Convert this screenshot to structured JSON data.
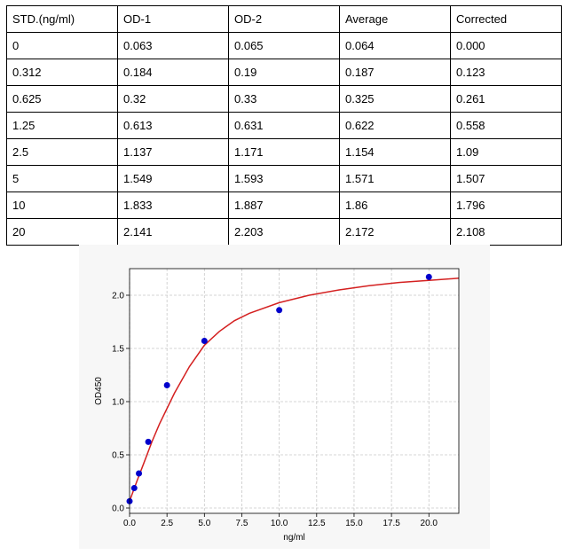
{
  "table": {
    "headers": [
      "STD.(ng/ml)",
      "OD-1",
      "OD-2",
      "Average",
      "Corrected"
    ],
    "rows": [
      [
        "0",
        "0.063",
        "0.065",
        "0.064",
        "0.000"
      ],
      [
        "0.312",
        "0.184",
        "0.19",
        "0.187",
        "0.123"
      ],
      [
        "0.625",
        "0.32",
        "0.33",
        "0.325",
        "0.261"
      ],
      [
        "1.25",
        "0.613",
        "0.631",
        "0.622",
        "0.558"
      ],
      [
        "2.5",
        "1.137",
        "1.171",
        "1.154",
        "1.09"
      ],
      [
        "5",
        "1.549",
        "1.593",
        "1.571",
        "1.507"
      ],
      [
        "10",
        "1.833",
        "1.887",
        "1.86",
        "1.796"
      ],
      [
        "20",
        "2.141",
        "2.203",
        "2.172",
        "2.108"
      ]
    ]
  },
  "chart_data": {
    "type": "scatter",
    "xlabel": "ng/ml",
    "ylabel": "OD450",
    "xlim": [
      0,
      22
    ],
    "ylim": [
      -0.05,
      2.25
    ],
    "xticks": [
      "0.0",
      "2.5",
      "5.0",
      "7.5",
      "10.0",
      "12.5",
      "15.0",
      "17.5",
      "20.0"
    ],
    "yticks": [
      "0.0",
      "0.5",
      "1.0",
      "1.5",
      "2.0"
    ],
    "grid": true,
    "point_color": "#0000cc",
    "curve_color": "#d42020",
    "series": [
      {
        "x": [
          0,
          0.312,
          0.625,
          1.25,
          2.5,
          5,
          10,
          20
        ],
        "y": [
          0.064,
          0.187,
          0.325,
          0.622,
          1.154,
          1.571,
          1.86,
          2.172
        ]
      }
    ],
    "fit_curve": {
      "x": [
        0,
        0.25,
        0.5,
        1,
        1.5,
        2,
        3,
        4,
        5,
        6,
        7,
        8,
        10,
        12,
        14,
        16,
        18,
        20,
        22
      ],
      "y": [
        0.064,
        0.16,
        0.255,
        0.44,
        0.625,
        0.79,
        1.08,
        1.33,
        1.53,
        1.66,
        1.76,
        1.83,
        1.93,
        2.0,
        2.05,
        2.09,
        2.12,
        2.14,
        2.16
      ]
    }
  }
}
